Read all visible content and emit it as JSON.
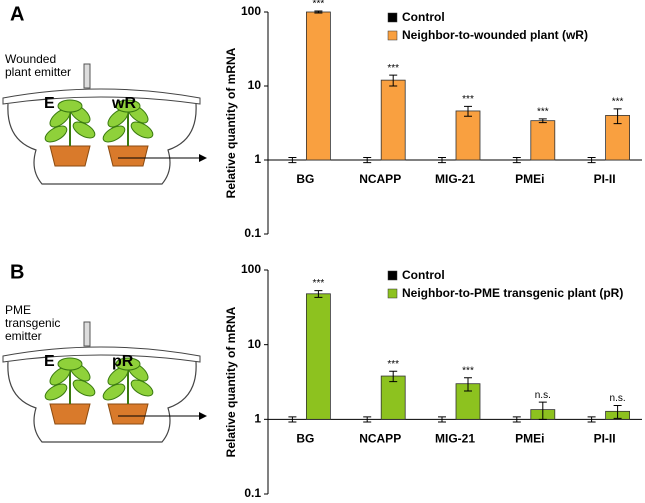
{
  "chart_data": [
    {
      "type": "bar",
      "log_scale": true,
      "ylabel": "Relative quantity of mRNA",
      "categories": [
        "BG",
        "NCAPP",
        "MIG-21",
        "PMEi",
        "PI-II"
      ],
      "series": [
        {
          "name": "Control",
          "color": "#000000",
          "values": [
            1,
            1,
            1,
            1,
            1
          ],
          "errors": [
            0.08,
            0.08,
            0.08,
            0.08,
            0.08
          ]
        },
        {
          "name": "Neighbor-to-wounded plant (wR)",
          "color": "#f9a040",
          "values": [
            100,
            12,
            4.6,
            3.4,
            4
          ],
          "errors": [
            3,
            2,
            0.7,
            0.2,
            0.9
          ],
          "annotations": [
            "***",
            "***",
            "***",
            "***",
            "***"
          ]
        }
      ],
      "ylim": [
        0.1,
        100
      ],
      "yticks": [
        0.1,
        1,
        10,
        100
      ],
      "grid": false,
      "legend": "upper right"
    },
    {
      "type": "bar",
      "log_scale": true,
      "ylabel": "Relative quantity of mRNA",
      "categories": [
        "BG",
        "NCAPP",
        "MIG-21",
        "PMEi",
        "PI-II"
      ],
      "series": [
        {
          "name": "Control",
          "color": "#000000",
          "values": [
            1,
            1,
            1,
            1,
            1
          ],
          "errors": [
            0.08,
            0.08,
            0.08,
            0.08,
            0.08
          ]
        },
        {
          "name": "Neighbor-to-PME transgenic plant (pR)",
          "color": "#8dc21f",
          "values": [
            48,
            3.8,
            3.0,
            1.35,
            1.28
          ],
          "errors": [
            5,
            0.6,
            0.6,
            0.35,
            0.25
          ],
          "annotations": [
            "***",
            "***",
            "***",
            "n.s.",
            "n.s."
          ]
        }
      ],
      "ylim": [
        0.1,
        100
      ],
      "yticks": [
        0.1,
        1,
        10,
        100
      ],
      "grid": false,
      "legend": "upper right"
    }
  ],
  "diagrams": [
    {
      "letter": "A",
      "emitter_label": [
        "Wounded",
        "plant emitter"
      ],
      "emitter": "E",
      "receiver": "wR"
    },
    {
      "letter": "B",
      "emitter_label": [
        "PME",
        "transgenic",
        "emitter"
      ],
      "emitter": "E",
      "receiver": "pR"
    }
  ]
}
